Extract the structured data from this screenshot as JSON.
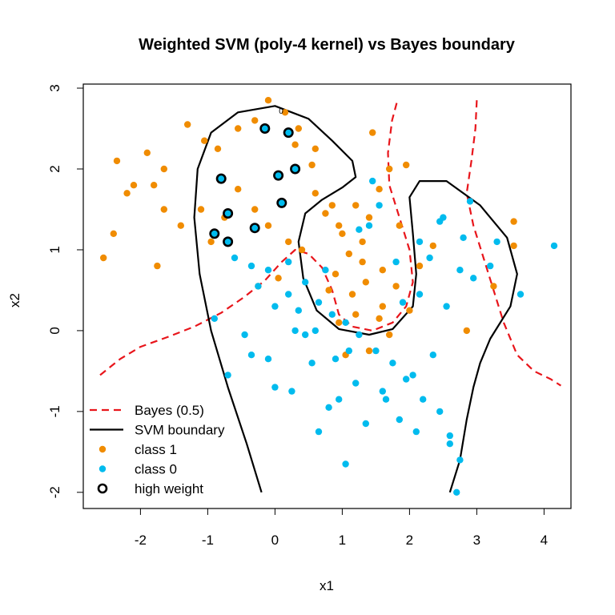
{
  "chart_data": {
    "type": "scatter",
    "title": "Weighted SVM (poly-4 kernel) vs Bayes boundary",
    "xlabel": "x1",
    "ylabel": "x2",
    "xlim": [
      -2.85,
      4.4
    ],
    "ylim": [
      -2.2,
      3.05
    ],
    "xticks": [
      -2,
      -1,
      0,
      1,
      2,
      3,
      4
    ],
    "yticks": [
      -2,
      -1,
      0,
      1,
      2,
      3
    ],
    "xtick_labels": [
      "-2",
      "-1",
      "0",
      "1",
      "2",
      "3",
      "4"
    ],
    "ytick_labels": [
      "-2",
      "-1",
      "0",
      "1",
      "2",
      "3"
    ],
    "grid": false,
    "legend_position": "bottom-left",
    "contour_label": "0",
    "colors": {
      "class1": "#f08c00",
      "class0": "#00bbee",
      "bayes": "#e8151b",
      "svm": "#000000",
      "axis": "#000000"
    },
    "legend": [
      {
        "label": "Bayes (0.5)",
        "kind": "dashed-line",
        "color": "#e8151b"
      },
      {
        "label": "SVM boundary",
        "kind": "solid-line",
        "color": "#000000"
      },
      {
        "label": "class 1",
        "kind": "point",
        "color": "#f08c00"
      },
      {
        "label": "class 0",
        "kind": "point",
        "color": "#00bbee"
      },
      {
        "label": "high weight",
        "kind": "open-circle",
        "color": "#000000"
      }
    ],
    "series": [
      {
        "name": "class 1",
        "points": [
          [
            -2.4,
            1.2
          ],
          [
            -2.2,
            1.7
          ],
          [
            -2.1,
            1.8
          ],
          [
            -1.9,
            2.2
          ],
          [
            -1.8,
            1.8
          ],
          [
            -1.65,
            1.5
          ],
          [
            -1.4,
            1.3
          ],
          [
            -1.1,
            1.5
          ],
          [
            -2.35,
            2.1
          ],
          [
            -1.75,
            0.8
          ],
          [
            -2.55,
            0.9
          ],
          [
            -1.65,
            2.0
          ],
          [
            -1.3,
            2.55
          ],
          [
            -1.05,
            2.35
          ],
          [
            -0.85,
            2.25
          ],
          [
            -0.55,
            2.5
          ],
          [
            -0.3,
            2.6
          ],
          [
            -0.1,
            2.85
          ],
          [
            0.15,
            2.7
          ],
          [
            0.35,
            2.5
          ],
          [
            -0.55,
            1.75
          ],
          [
            -0.3,
            1.5
          ],
          [
            -0.1,
            1.3
          ],
          [
            0.2,
            1.1
          ],
          [
            0.4,
            1.0
          ],
          [
            -0.75,
            1.4
          ],
          [
            -0.95,
            1.1
          ],
          [
            0.05,
            0.65
          ],
          [
            -0.25,
            0.55
          ],
          [
            0.3,
            2.3
          ],
          [
            0.55,
            2.05
          ],
          [
            0.6,
            1.7
          ],
          [
            0.75,
            1.45
          ],
          [
            0.95,
            1.3
          ],
          [
            1.2,
            1.55
          ],
          [
            1.4,
            1.4
          ],
          [
            1.55,
            1.75
          ],
          [
            1.7,
            2.0
          ],
          [
            1.85,
            1.3
          ],
          [
            1.3,
            1.1
          ],
          [
            1.1,
            0.95
          ],
          [
            0.9,
            0.7
          ],
          [
            1.15,
            0.45
          ],
          [
            1.35,
            0.6
          ],
          [
            1.6,
            0.75
          ],
          [
            1.8,
            0.55
          ],
          [
            2.0,
            0.25
          ],
          [
            1.55,
            0.15
          ],
          [
            1.2,
            0.2
          ],
          [
            0.95,
            0.1
          ],
          [
            1.7,
            -0.05
          ],
          [
            2.15,
            0.8
          ],
          [
            2.35,
            1.05
          ],
          [
            1.45,
            2.45
          ],
          [
            1.95,
            2.05
          ],
          [
            3.55,
            1.35
          ],
          [
            3.25,
            0.55
          ],
          [
            3.55,
            1.05
          ],
          [
            2.85,
            0.0
          ],
          [
            0.8,
            0.5
          ],
          [
            1.05,
            -0.3
          ],
          [
            1.4,
            -0.25
          ],
          [
            1.6,
            0.3
          ],
          [
            1.0,
            1.2
          ],
          [
            1.3,
            0.85
          ],
          [
            0.85,
            1.55
          ],
          [
            0.6,
            2.25
          ]
        ]
      },
      {
        "name": "class 0",
        "points": [
          [
            -0.6,
            0.9
          ],
          [
            -0.35,
            0.8
          ],
          [
            -0.1,
            0.75
          ],
          [
            0.2,
            0.85
          ],
          [
            0.45,
            0.6
          ],
          [
            0.65,
            0.35
          ],
          [
            0.85,
            0.2
          ],
          [
            1.05,
            0.1
          ],
          [
            1.25,
            -0.05
          ],
          [
            1.5,
            -0.25
          ],
          [
            1.75,
            -0.4
          ],
          [
            1.95,
            -0.6
          ],
          [
            2.2,
            -0.85
          ],
          [
            2.45,
            -1.0
          ],
          [
            2.6,
            -1.3
          ],
          [
            2.75,
            -1.6
          ],
          [
            2.7,
            -2.0
          ],
          [
            1.05,
            -1.65
          ],
          [
            0.65,
            -1.25
          ],
          [
            0.25,
            -0.75
          ],
          [
            -0.1,
            -0.35
          ],
          [
            -0.45,
            -0.05
          ],
          [
            -0.7,
            -0.55
          ],
          [
            -0.9,
            0.15
          ],
          [
            0.0,
            0.3
          ],
          [
            0.3,
            0.0
          ],
          [
            0.55,
            -0.4
          ],
          [
            0.95,
            -0.85
          ],
          [
            1.35,
            -1.15
          ],
          [
            1.65,
            -0.85
          ],
          [
            2.05,
            -0.55
          ],
          [
            2.35,
            -0.3
          ],
          [
            2.55,
            0.3
          ],
          [
            2.75,
            0.75
          ],
          [
            2.95,
            0.65
          ],
          [
            3.3,
            1.1
          ],
          [
            3.65,
            0.45
          ],
          [
            4.15,
            1.05
          ],
          [
            2.8,
            1.15
          ],
          [
            2.45,
            1.35
          ],
          [
            2.15,
            1.1
          ],
          [
            1.8,
            0.85
          ],
          [
            1.45,
            1.85
          ],
          [
            1.25,
            1.25
          ],
          [
            0.75,
            0.75
          ],
          [
            0.35,
            0.25
          ],
          [
            0.0,
            -0.7
          ],
          [
            -0.25,
            0.55
          ],
          [
            2.3,
            0.9
          ],
          [
            2.5,
            1.4
          ],
          [
            1.6,
            -0.75
          ],
          [
            1.85,
            -1.1
          ],
          [
            2.1,
            -1.25
          ],
          [
            1.2,
            -0.65
          ],
          [
            0.8,
            -0.95
          ],
          [
            0.45,
            -0.05
          ],
          [
            2.9,
            1.6
          ],
          [
            3.2,
            0.8
          ],
          [
            1.9,
            0.35
          ],
          [
            2.15,
            0.45
          ],
          [
            1.4,
            1.3
          ],
          [
            0.6,
            0.0
          ],
          [
            0.2,
            0.45
          ],
          [
            -0.35,
            -0.3
          ],
          [
            0.9,
            -0.35
          ],
          [
            1.1,
            -0.25
          ],
          [
            2.6,
            -1.4
          ],
          [
            1.55,
            1.55
          ]
        ]
      }
    ],
    "high_weight_points": [
      [
        -0.15,
        2.5
      ],
      [
        0.2,
        2.45
      ],
      [
        -0.8,
        1.88
      ],
      [
        0.05,
        1.92
      ],
      [
        0.3,
        2.0
      ],
      [
        -0.7,
        1.45
      ],
      [
        0.1,
        1.58
      ],
      [
        -0.9,
        1.2
      ],
      [
        -0.7,
        1.1
      ],
      [
        -0.3,
        1.27
      ]
    ],
    "bayes_boundary": [
      [
        [
          -2.6,
          -0.55
        ],
        [
          -2.3,
          -0.35
        ],
        [
          -2.0,
          -0.2
        ],
        [
          -1.6,
          -0.08
        ],
        [
          -1.2,
          0.05
        ],
        [
          -0.8,
          0.22
        ],
        [
          -0.45,
          0.42
        ],
        [
          -0.15,
          0.62
        ],
        [
          0.1,
          0.85
        ],
        [
          0.3,
          1.0
        ],
        [
          0.5,
          0.95
        ],
        [
          0.7,
          0.78
        ],
        [
          0.85,
          0.5
        ],
        [
          0.95,
          0.2
        ],
        [
          1.15,
          0.05
        ],
        [
          1.45,
          0.0
        ],
        [
          1.75,
          0.1
        ],
        [
          1.95,
          0.3
        ],
        [
          2.05,
          0.6
        ],
        [
          2.0,
          1.0
        ],
        [
          1.85,
          1.4
        ],
        [
          1.7,
          1.8
        ],
        [
          1.68,
          2.2
        ],
        [
          1.74,
          2.6
        ],
        [
          1.82,
          2.85
        ]
      ],
      [
        [
          3.0,
          2.85
        ],
        [
          2.98,
          2.5
        ],
        [
          2.92,
          2.1
        ],
        [
          2.85,
          1.7
        ],
        [
          2.95,
          1.3
        ],
        [
          3.1,
          0.9
        ],
        [
          3.25,
          0.5
        ],
        [
          3.4,
          0.1
        ],
        [
          3.6,
          -0.3
        ],
        [
          3.85,
          -0.5
        ],
        [
          4.1,
          -0.6
        ],
        [
          4.25,
          -0.68
        ]
      ]
    ],
    "svm_boundary": [
      [
        -0.2,
        -2.0
      ],
      [
        -0.42,
        -1.4
      ],
      [
        -0.7,
        -0.7
      ],
      [
        -0.95,
        0.0
      ],
      [
        -1.12,
        0.7
      ],
      [
        -1.2,
        1.4
      ],
      [
        -1.15,
        2.0
      ],
      [
        -0.95,
        2.45
      ],
      [
        -0.55,
        2.7
      ],
      [
        0.0,
        2.78
      ],
      [
        0.5,
        2.62
      ],
      [
        0.85,
        2.35
      ],
      [
        1.15,
        2.1
      ],
      [
        1.2,
        1.9
      ],
      [
        1.0,
        1.77
      ],
      [
        0.7,
        1.62
      ],
      [
        0.45,
        1.45
      ],
      [
        0.35,
        1.1
      ],
      [
        0.42,
        0.65
      ],
      [
        0.62,
        0.25
      ],
      [
        0.95,
        0.02
      ],
      [
        1.4,
        -0.05
      ],
      [
        1.75,
        0.02
      ],
      [
        2.05,
        0.3
      ],
      [
        2.1,
        0.7
      ],
      [
        2.05,
        1.2
      ],
      [
        2.0,
        1.65
      ],
      [
        2.15,
        1.85
      ],
      [
        2.55,
        1.85
      ],
      [
        3.05,
        1.55
      ],
      [
        3.45,
        1.15
      ],
      [
        3.6,
        0.7
      ],
      [
        3.5,
        0.3
      ],
      [
        3.2,
        -0.1
      ],
      [
        3.05,
        -0.4
      ],
      [
        2.95,
        -0.7
      ],
      [
        2.85,
        -1.1
      ],
      [
        2.75,
        -1.6
      ],
      [
        2.6,
        -2.0
      ]
    ]
  }
}
